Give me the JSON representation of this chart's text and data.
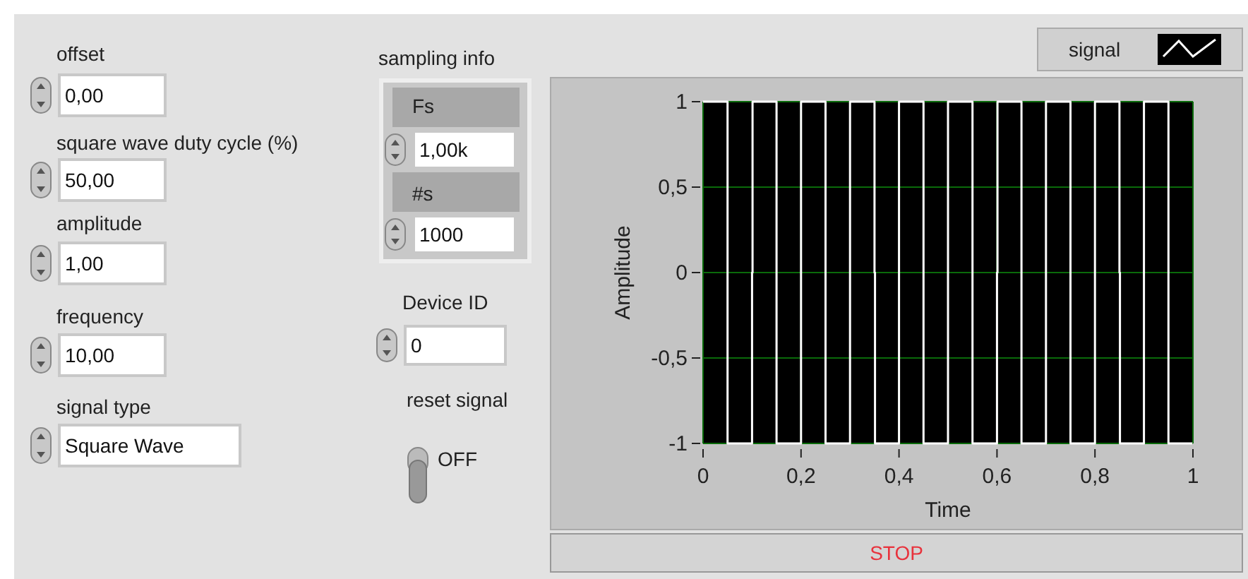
{
  "chart_data": [
    {
      "type": "other",
      "annotations": [
        "offset",
        "0,00",
        "square wave duty cycle (%)",
        "50,00",
        "amplitude",
        "1,00",
        "frequency",
        "10,00",
        "signal type",
        "Square Wave",
        "sampling info",
        "Fs",
        "1,00k",
        "#s",
        "1000",
        "Device ID",
        "0",
        "reset signal",
        "OFF",
        "STOP"
      ]
    },
    {
      "type": "line",
      "xlabel": "Time",
      "ylabel": "Amplitude",
      "xlim": [
        0,
        1
      ],
      "ylim": [
        -1,
        1
      ],
      "xticks": [
        0,
        {
          "value": 0.2,
          "label": "0,2"
        },
        {
          "value": 0.4,
          "label": "0,4"
        },
        {
          "value": 0.6,
          "label": "0,6"
        },
        {
          "value": 0.8,
          "label": "0,8"
        },
        1
      ],
      "yticks": [
        -1,
        {
          "value": -0.5,
          "label": "-0,5"
        },
        0,
        {
          "value": 0.5,
          "label": "0,5"
        },
        1
      ],
      "grid": true,
      "legend": "top right",
      "series": [
        {
          "name": "signal",
          "color": "#ffffff",
          "x": [
            0,
            0.05,
            0.05,
            0.1,
            0.1,
            0.101,
            0.101,
            0.15,
            0.15,
            0.2,
            0.2,
            0.25,
            0.25,
            0.3,
            0.3,
            0.35,
            0.35,
            0.351,
            0.351,
            0.4,
            0.4,
            0.45,
            0.45,
            0.5,
            0.5,
            0.55,
            0.55,
            0.6,
            0.6,
            0.601,
            0.601,
            0.65,
            0.65,
            0.7,
            0.7,
            0.75,
            0.75,
            0.8,
            0.8,
            0.85,
            0.85,
            0.851,
            0.851,
            0.9,
            0.9,
            0.95,
            0.95,
            0.999
          ],
          "values": [
            1,
            1,
            -1,
            -1,
            0,
            0,
            1,
            1,
            -1,
            -1,
            1,
            1,
            -1,
            -1,
            1,
            1,
            0,
            0,
            -1,
            -1,
            1,
            1,
            -1,
            -1,
            1,
            1,
            -1,
            -1,
            0,
            0,
            1,
            1,
            -1,
            -1,
            1,
            1,
            -1,
            -1,
            1,
            1,
            0,
            0,
            -1,
            -1,
            1,
            1,
            -1,
            -1
          ]
        }
      ]
    }
  ]
}
